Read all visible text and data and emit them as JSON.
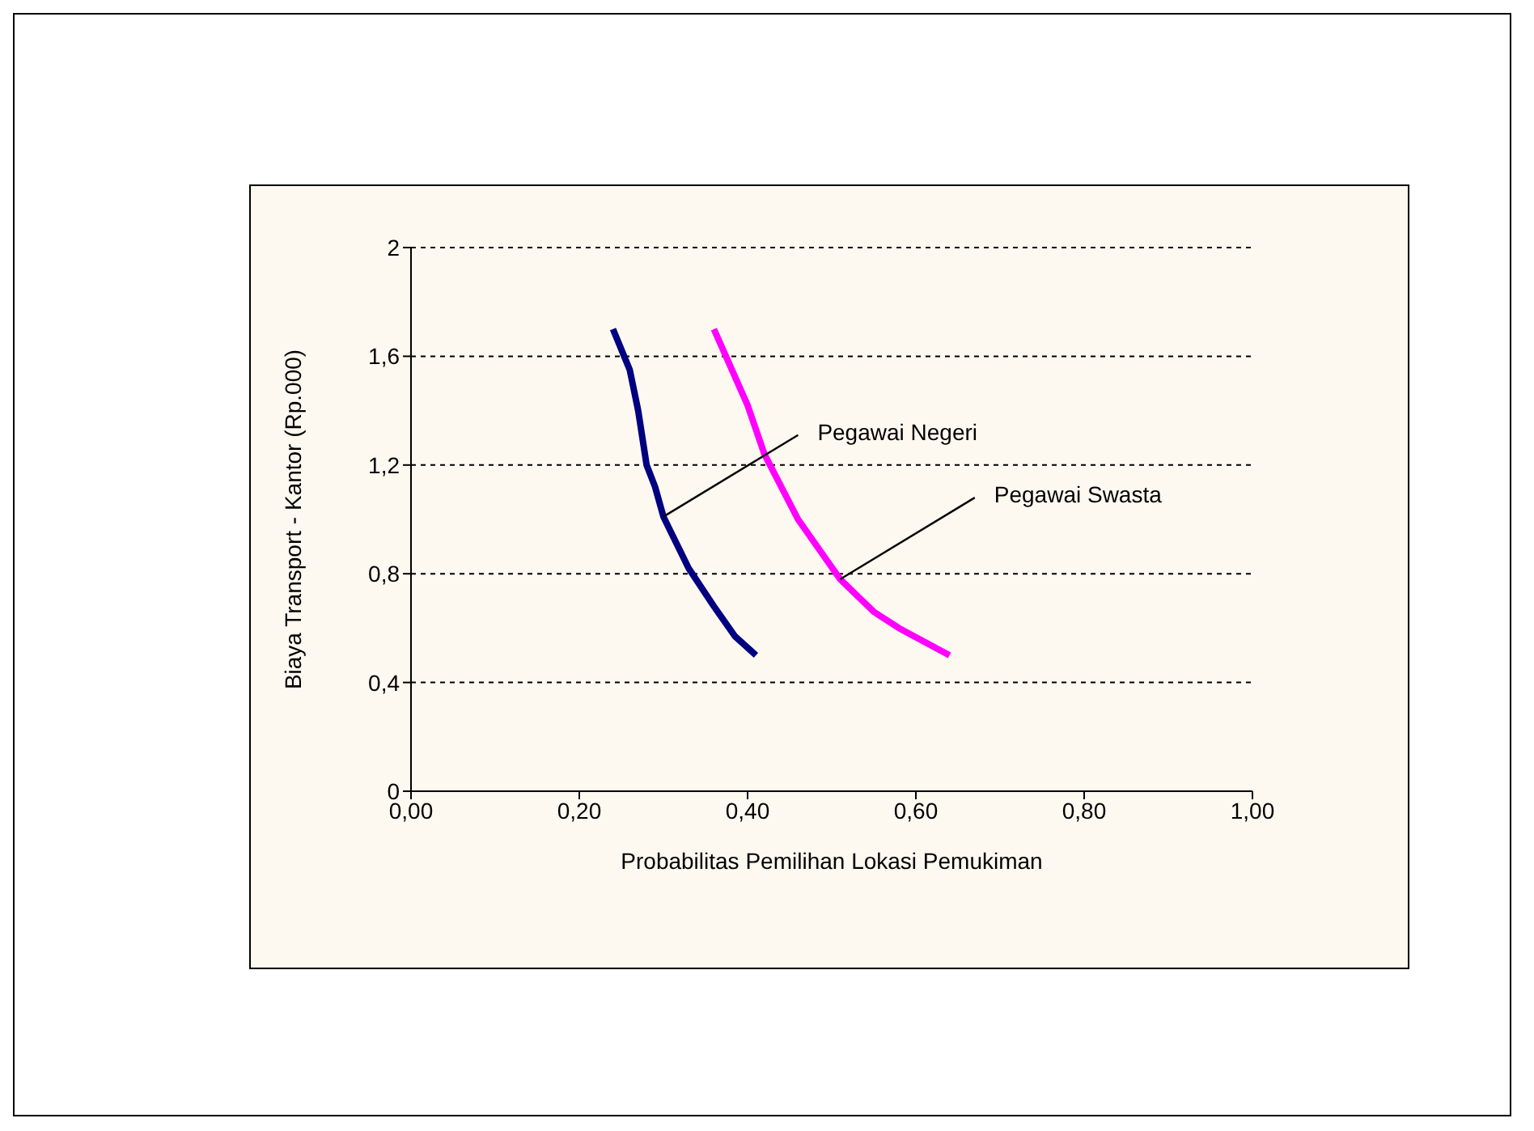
{
  "chart_data": {
    "type": "line",
    "xlabel": "Probabilitas Pemilihan Lokasi Pemukiman",
    "ylabel": "Biaya Transport - Kantor (Rp.000)",
    "series": [
      {
        "name": "Pegawai Negeri",
        "color": "#000080",
        "x": [
          0.24,
          0.26,
          0.27,
          0.28,
          0.29,
          0.3,
          0.33,
          0.36,
          0.385,
          0.41
        ],
        "values": [
          1.7,
          1.55,
          1.4,
          1.2,
          1.12,
          1.01,
          0.82,
          0.68,
          0.57,
          0.5
        ]
      },
      {
        "name": "Pegawai Swasta",
        "color": "#ff00ff",
        "x": [
          0.36,
          0.38,
          0.4,
          0.42,
          0.46,
          0.51,
          0.53,
          0.55,
          0.58,
          0.61,
          0.64
        ],
        "values": [
          1.7,
          1.56,
          1.42,
          1.24,
          1.0,
          0.78,
          0.72,
          0.66,
          0.6,
          0.55,
          0.5
        ]
      }
    ],
    "xlim": [
      0,
      1
    ],
    "ylim": [
      0,
      2
    ],
    "xticks": [
      {
        "value": 0,
        "label": "0,00"
      },
      {
        "value": 0.2,
        "label": "0,20"
      },
      {
        "value": 0.4,
        "label": "0,40"
      },
      {
        "value": 0.6,
        "label": "0,60"
      },
      {
        "value": 0.8,
        "label": "0,80"
      },
      {
        "value": 1,
        "label": "1,00"
      }
    ],
    "yticks": [
      0,
      {
        "value": 0.4,
        "label": "0,4"
      },
      {
        "value": 0.8,
        "label": "0,8"
      },
      {
        "value": 1.2,
        "label": "1,2"
      },
      {
        "value": 1.6,
        "label": "1,6"
      },
      2
    ],
    "grid": "y",
    "legend": false,
    "marker": "none",
    "line_style": "solid"
  }
}
